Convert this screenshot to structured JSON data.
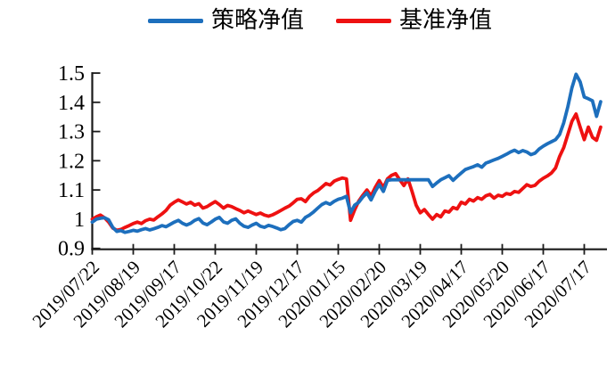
{
  "legend": {
    "items": [
      {
        "label": "策略净值",
        "color": "#1d6fbd"
      },
      {
        "label": "基准净值",
        "color": "#ee1111"
      }
    ]
  },
  "colors": {
    "axis": "#1a1a1a",
    "background": "#ffffff",
    "strategy_blue": "#1d6fbd",
    "benchmark_red": "#ee1111"
  },
  "chart_data": {
    "type": "line",
    "title": "",
    "xlabel": "",
    "ylabel": "",
    "grid": false,
    "legend_position": "top-center",
    "ylim": [
      0.9,
      1.5
    ],
    "y_tick_labels": [
      "0.9",
      "1",
      "1.1",
      "1.2",
      "1.3",
      "1.4",
      "1.5"
    ],
    "y_tick_values": [
      0.9,
      1.0,
      1.1,
      1.2,
      1.3,
      1.4,
      1.5
    ],
    "x_tick_labels": [
      "2019/07/22",
      "2019/08/19",
      "2019/09/17",
      "2019/10/22",
      "2019/11/19",
      "2019/12/17",
      "2020/01/15",
      "2020/02/20",
      "2020/03/19",
      "2020/04/17",
      "2020/05/20",
      "2020/06/17",
      "2020/07/17"
    ],
    "x_tick_days": [
      0,
      20,
      40,
      60,
      80,
      100,
      120,
      140,
      160,
      180,
      200,
      220,
      240
    ],
    "x_days": [
      0,
      2,
      4,
      6,
      8,
      10,
      12,
      14,
      16,
      18,
      20,
      22,
      24,
      26,
      28,
      30,
      32,
      34,
      36,
      38,
      40,
      42,
      44,
      46,
      48,
      50,
      52,
      54,
      56,
      58,
      60,
      62,
      64,
      66,
      68,
      70,
      72,
      74,
      76,
      78,
      80,
      82,
      84,
      86,
      88,
      90,
      92,
      94,
      96,
      98,
      100,
      102,
      104,
      106,
      108,
      110,
      112,
      114,
      116,
      118,
      120,
      122,
      124,
      126,
      128,
      130,
      132,
      134,
      136,
      138,
      140,
      142,
      144,
      146,
      148,
      150,
      152,
      154,
      156,
      158,
      160,
      162,
      164,
      166,
      168,
      170,
      172,
      174,
      176,
      178,
      180,
      182,
      184,
      186,
      188,
      190,
      192,
      194,
      196,
      198,
      200,
      202,
      204,
      206,
      208,
      210,
      212,
      214,
      216,
      218,
      220,
      222,
      224,
      226,
      228,
      230,
      232,
      234,
      236,
      238,
      240,
      242,
      244,
      246,
      248
    ],
    "series": [
      {
        "name": "策略净值",
        "color": "#1d6fbd",
        "values": [
          0.99,
          1.0,
          1.003,
          1.005,
          0.998,
          0.972,
          0.958,
          0.961,
          0.955,
          0.958,
          0.962,
          0.959,
          0.964,
          0.968,
          0.963,
          0.967,
          0.972,
          0.978,
          0.974,
          0.982,
          0.99,
          0.996,
          0.986,
          0.98,
          0.986,
          0.996,
          1.002,
          0.987,
          0.981,
          0.99,
          1.0,
          1.006,
          0.991,
          0.986,
          0.996,
          1.001,
          0.986,
          0.976,
          0.972,
          0.98,
          0.986,
          0.976,
          0.972,
          0.979,
          0.975,
          0.97,
          0.964,
          0.968,
          0.981,
          0.992,
          0.996,
          0.99,
          1.006,
          1.014,
          1.025,
          1.038,
          1.05,
          1.057,
          1.051,
          1.061,
          1.068,
          1.072,
          1.078,
          1.022,
          1.048,
          1.058,
          1.076,
          1.09,
          1.066,
          1.095,
          1.118,
          1.095,
          1.133,
          1.135,
          1.135,
          1.135,
          1.135,
          1.135,
          1.135,
          1.135,
          1.135,
          1.135,
          1.135,
          1.112,
          1.124,
          1.135,
          1.142,
          1.149,
          1.133,
          1.146,
          1.158,
          1.17,
          1.175,
          1.18,
          1.186,
          1.178,
          1.192,
          1.197,
          1.203,
          1.208,
          1.215,
          1.222,
          1.23,
          1.236,
          1.228,
          1.235,
          1.23,
          1.221,
          1.226,
          1.24,
          1.25,
          1.258,
          1.265,
          1.272,
          1.29,
          1.33,
          1.385,
          1.45,
          1.496,
          1.47,
          1.418,
          1.412,
          1.405,
          1.352,
          1.402
        ]
      },
      {
        "name": "基准净值",
        "color": "#ee1111",
        "values": [
          1.0,
          1.008,
          1.014,
          1.005,
          0.99,
          0.97,
          0.962,
          0.965,
          0.972,
          0.978,
          0.985,
          0.99,
          0.985,
          0.995,
          1.0,
          0.997,
          1.008,
          1.018,
          1.03,
          1.048,
          1.058,
          1.066,
          1.059,
          1.052,
          1.058,
          1.048,
          1.053,
          1.038,
          1.043,
          1.052,
          1.06,
          1.05,
          1.038,
          1.047,
          1.043,
          1.036,
          1.03,
          1.022,
          1.028,
          1.022,
          1.016,
          1.021,
          1.014,
          1.01,
          1.015,
          1.022,
          1.03,
          1.038,
          1.045,
          1.056,
          1.068,
          1.07,
          1.06,
          1.078,
          1.09,
          1.098,
          1.11,
          1.122,
          1.117,
          1.13,
          1.136,
          1.141,
          1.138,
          0.996,
          1.032,
          1.062,
          1.082,
          1.1,
          1.08,
          1.108,
          1.132,
          1.108,
          1.138,
          1.15,
          1.156,
          1.135,
          1.115,
          1.138,
          1.095,
          1.048,
          1.022,
          1.033,
          1.016,
          1.0,
          1.016,
          1.008,
          1.028,
          1.024,
          1.04,
          1.035,
          1.058,
          1.052,
          1.068,
          1.062,
          1.074,
          1.068,
          1.08,
          1.085,
          1.072,
          1.082,
          1.078,
          1.088,
          1.085,
          1.095,
          1.092,
          1.105,
          1.118,
          1.112,
          1.116,
          1.13,
          1.14,
          1.148,
          1.158,
          1.175,
          1.215,
          1.245,
          1.29,
          1.335,
          1.36,
          1.315,
          1.272,
          1.315,
          1.28,
          1.27,
          1.315
        ]
      }
    ]
  }
}
